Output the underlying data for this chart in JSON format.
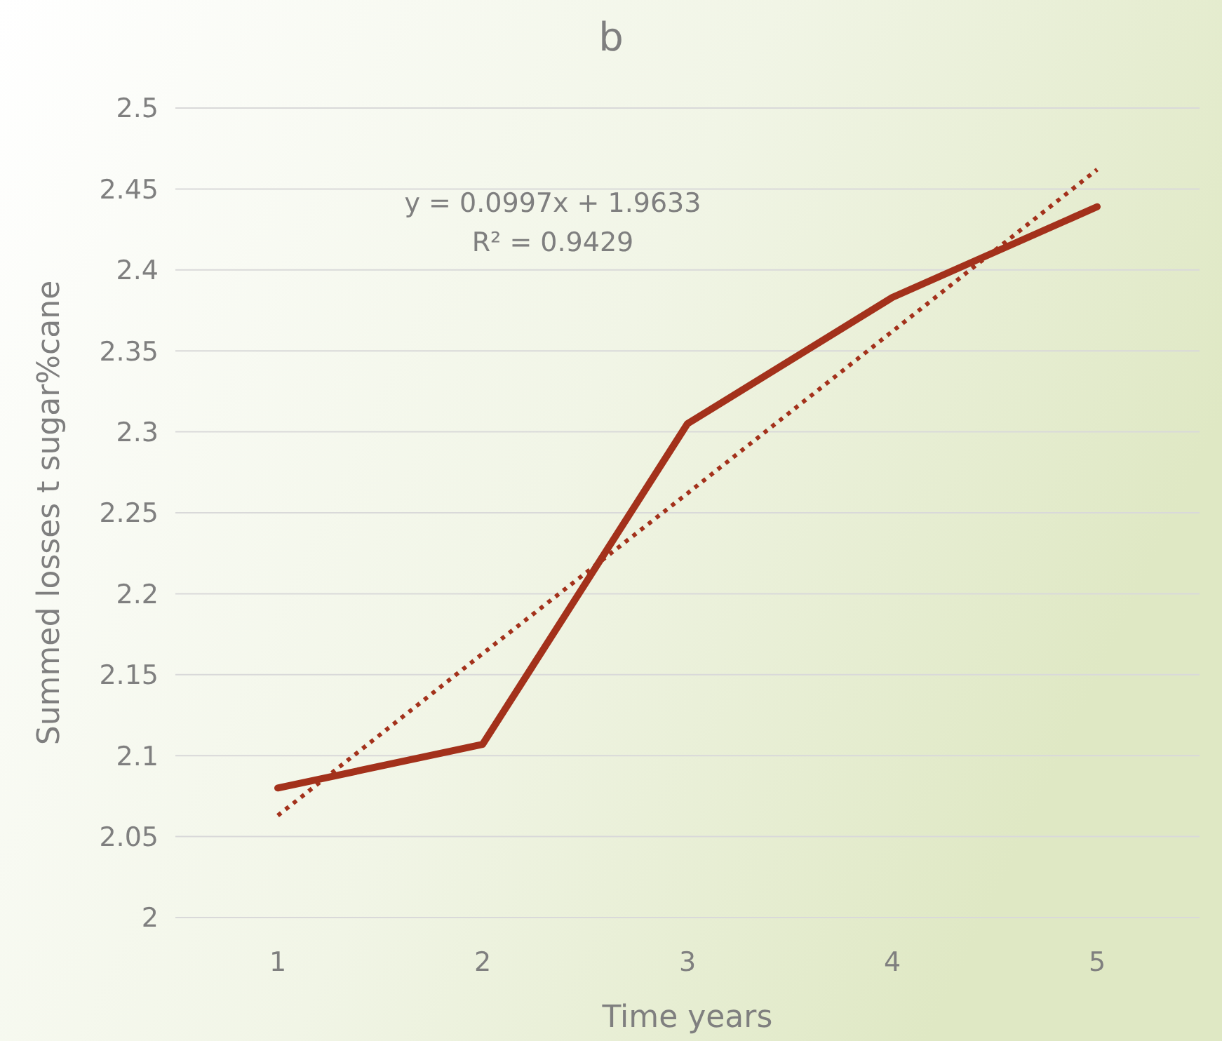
{
  "chart_data": {
    "type": "line",
    "title": "b",
    "xlabel": "Time years",
    "ylabel": "Summed losses t sugar%cane",
    "categories": [
      "1",
      "2",
      "3",
      "4",
      "5"
    ],
    "series": [
      {
        "color": "#a3311b",
        "values": [
          2.08,
          2.107,
          2.305,
          2.383,
          2.439
        ],
        "line_style": "solid"
      },
      {
        "type": "line",
        "color": "#a3311b",
        "values": [
          2.063,
          2.163,
          2.262,
          2.362,
          2.462
        ],
        "line_style": "dotted"
      }
    ],
    "ylim": [
      2,
      2.5
    ],
    "yticks": [
      2,
      2.05,
      2.1,
      2.15,
      2.2,
      2.25,
      2.3,
      2.35,
      2.4,
      2.45,
      2.5
    ],
    "grid": "y",
    "marker": "none",
    "annotations": [
      "y = 0.0997x + 1.9633",
      "R² = 0.9429"
    ]
  }
}
